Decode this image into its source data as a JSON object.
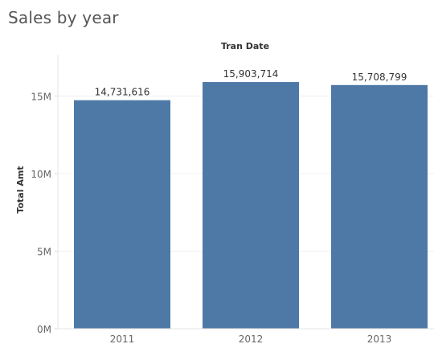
{
  "chart_data": {
    "type": "bar",
    "title": "Sales by year",
    "xlabel": "Tran Date",
    "ylabel": "Total Amt",
    "categories": [
      "2011",
      "2012",
      "2013"
    ],
    "values": [
      14731616,
      15903714,
      15708799
    ],
    "value_labels": [
      "14,731,616",
      "15,903,714",
      "15,708,799"
    ],
    "yticks": [
      0,
      5000000,
      10000000,
      15000000
    ],
    "ytick_labels": [
      "0M",
      "5M",
      "10M",
      "15M"
    ],
    "ylim": [
      0,
      17500000
    ],
    "grid": true,
    "bar_color": "#4e79a7"
  }
}
